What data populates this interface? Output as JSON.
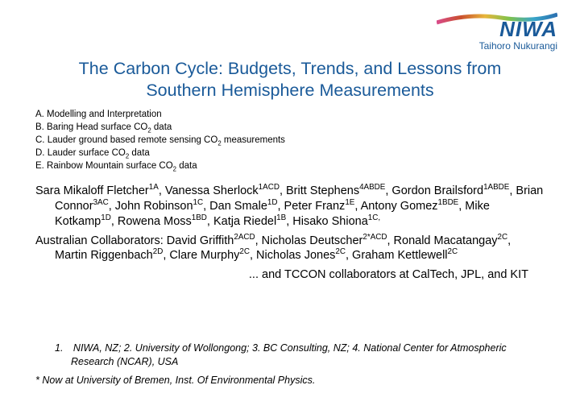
{
  "colors": {
    "title": "#1a5a99",
    "logo_text": "#1a5a99",
    "body_text": "#000000",
    "background": "#ffffff",
    "swoosh_gradient": [
      "#d94b8c",
      "#c94f2e",
      "#e8b63b",
      "#7fc24b",
      "#3aa6c9",
      "#2b6fb0"
    ]
  },
  "logo": {
    "name": "NIWA",
    "tagline": "Taihoro Nukurangi"
  },
  "title": {
    "line1": "The Carbon Cycle: Budgets, Trends, and Lessons from",
    "line2": "Southern Hemisphere Measurements"
  },
  "key_items": [
    {
      "letter": "A",
      "text": "Modelling and Interpretation"
    },
    {
      "letter": "B",
      "pre": "Baring Head surface CO",
      "sub": "2",
      "post": " data"
    },
    {
      "letter": "C",
      "pre": "Lauder ground based remote sensing CO",
      "sub": "2",
      "post": " measurements"
    },
    {
      "letter": "D",
      "pre": "Lauder surface CO",
      "sub": "2",
      "post": " data"
    },
    {
      "letter": "E",
      "pre": "Rainbow Mountain surface CO",
      "sub": "2",
      "post": " data"
    }
  ],
  "authors_primary": [
    {
      "name": "Sara Mikaloff Fletcher",
      "sup": "1A"
    },
    {
      "name": "Vanessa Sherlock",
      "sup": "1ACD"
    },
    {
      "name": "Britt Stephens",
      "sup": "4ABDE"
    },
    {
      "name": "Gordon Brailsford",
      "sup": "1ABDE"
    },
    {
      "name": "Brian Connor",
      "sup": "3AC"
    },
    {
      "name": "John Robinson",
      "sup": "1C"
    },
    {
      "name": "Dan Smale",
      "sup": "1D"
    },
    {
      "name": "Peter Franz",
      "sup": "1E"
    },
    {
      "name": "Antony Gomez",
      "sup": "1BDE"
    },
    {
      "name": "Mike Kotkamp",
      "sup": "1D"
    },
    {
      "name": "Rowena Moss",
      "sup": "1BD"
    },
    {
      "name": "Katja Riedel",
      "sup": "1B"
    },
    {
      "name": "Hisako Shiona",
      "sup": "1C,"
    }
  ],
  "collab_label": "Australian Collaborators: ",
  "authors_collab": [
    {
      "name": "David Griffith",
      "sup": "2ACD"
    },
    {
      "name": "Nicholas Deutscher",
      "sup": "2*ACD"
    },
    {
      "name": "Ronald Macatangay",
      "sup": "2C"
    },
    {
      "name": "Martin Riggenbach",
      "sup": "2D"
    },
    {
      "name": "Clare Murphy",
      "sup": "2C"
    },
    {
      "name": "Nicholas Jones",
      "sup": "2C"
    },
    {
      "name": "Graham Kettlewell",
      "sup": "2C"
    }
  ],
  "tccon_line": "... and TCCON collaborators at CalTech, JPL, and KIT",
  "affiliations": {
    "numbered": "1. NIWA, NZ; 2. University of Wollongong; 3. BC Consulting, NZ; 4. National Center for Atmospheric Research (NCAR), USA",
    "footnote": "* Now at University of Bremen, Inst. Of Environmental Physics."
  }
}
